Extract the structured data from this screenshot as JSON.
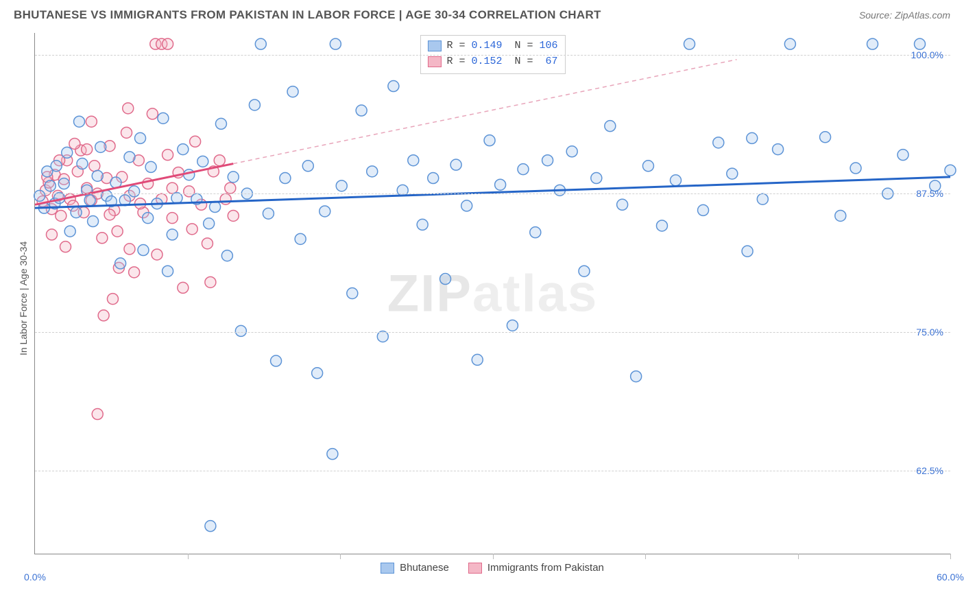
{
  "header": {
    "title": "BHUTANESE VS IMMIGRANTS FROM PAKISTAN IN LABOR FORCE | AGE 30-34 CORRELATION CHART",
    "source": "Source: ZipAtlas.com"
  },
  "watermark": {
    "strong": "ZIP",
    "light": "atlas"
  },
  "chart": {
    "type": "scatter",
    "ylabel": "In Labor Force | Age 30-34",
    "xlim": [
      0,
      60
    ],
    "ylim": [
      55,
      102
    ],
    "xticks": [
      0,
      10,
      20,
      30,
      40,
      50,
      60
    ],
    "xticks_labeled": [
      {
        "v": 0,
        "label": "0.0%"
      },
      {
        "v": 60,
        "label": "60.0%"
      }
    ],
    "yticks": [
      {
        "v": 62.5,
        "label": "62.5%"
      },
      {
        "v": 75.0,
        "label": "75.0%"
      },
      {
        "v": 87.5,
        "label": "87.5%"
      },
      {
        "v": 100.0,
        "label": "100.0%"
      }
    ],
    "grid_color": "#d0d0d0",
    "background": "#ffffff",
    "marker_radius": 8,
    "marker_fill_opacity": 0.35,
    "marker_stroke_width": 1.5,
    "series": [
      {
        "name": "Bhutanese",
        "color_fill": "#a9c8ee",
        "color_stroke": "#5c93d6",
        "trend": {
          "x1": 0,
          "y1": 86.2,
          "x2": 60,
          "y2": 89.0,
          "stroke": "#2565c7",
          "width": 3,
          "dash": ""
        },
        "R": 0.149,
        "N": 106,
        "points": [
          [
            0.3,
            87.3
          ],
          [
            0.6,
            86.2
          ],
          [
            0.8,
            89.5
          ],
          [
            1.0,
            88.2
          ],
          [
            1.3,
            86.6
          ],
          [
            1.4,
            90.0
          ],
          [
            1.6,
            87.1
          ],
          [
            1.9,
            88.4
          ],
          [
            2.1,
            91.2
          ],
          [
            2.3,
            84.1
          ],
          [
            2.7,
            85.8
          ],
          [
            2.9,
            94.0
          ],
          [
            3.1,
            90.2
          ],
          [
            3.4,
            87.8
          ],
          [
            3.6,
            86.9
          ],
          [
            3.8,
            85.0
          ],
          [
            4.1,
            89.1
          ],
          [
            4.3,
            91.7
          ],
          [
            4.7,
            87.3
          ],
          [
            5.0,
            86.8
          ],
          [
            5.3,
            88.5
          ],
          [
            5.6,
            81.2
          ],
          [
            5.9,
            86.9
          ],
          [
            6.2,
            90.8
          ],
          [
            6.5,
            87.7
          ],
          [
            6.9,
            92.5
          ],
          [
            7.1,
            82.4
          ],
          [
            7.4,
            85.3
          ],
          [
            7.6,
            89.9
          ],
          [
            8.0,
            86.6
          ],
          [
            8.4,
            94.3
          ],
          [
            8.7,
            80.5
          ],
          [
            9.0,
            83.8
          ],
          [
            9.3,
            87.1
          ],
          [
            9.7,
            91.5
          ],
          [
            10.1,
            89.2
          ],
          [
            10.6,
            87.0
          ],
          [
            11.0,
            90.4
          ],
          [
            11.4,
            84.8
          ],
          [
            11.8,
            86.3
          ],
          [
            12.2,
            93.8
          ],
          [
            12.6,
            81.9
          ],
          [
            13.0,
            89.0
          ],
          [
            13.5,
            75.1
          ],
          [
            13.9,
            87.5
          ],
          [
            14.4,
            95.5
          ],
          [
            14.8,
            101.0
          ],
          [
            15.3,
            85.7
          ],
          [
            15.8,
            72.4
          ],
          [
            16.4,
            88.9
          ],
          [
            16.9,
            96.7
          ],
          [
            17.4,
            83.4
          ],
          [
            17.9,
            90.0
          ],
          [
            18.5,
            71.3
          ],
          [
            19.0,
            85.9
          ],
          [
            19.5,
            64.0
          ],
          [
            19.7,
            101.0
          ],
          [
            20.1,
            88.2
          ],
          [
            20.8,
            78.5
          ],
          [
            21.4,
            95.0
          ],
          [
            22.1,
            89.5
          ],
          [
            22.8,
            74.6
          ],
          [
            23.5,
            97.2
          ],
          [
            24.1,
            87.8
          ],
          [
            24.8,
            90.5
          ],
          [
            25.4,
            84.7
          ],
          [
            26.1,
            88.9
          ],
          [
            26.9,
            79.8
          ],
          [
            27.6,
            90.1
          ],
          [
            28.3,
            86.4
          ],
          [
            29.0,
            72.5
          ],
          [
            29.8,
            92.3
          ],
          [
            30.5,
            88.3
          ],
          [
            31.3,
            75.6
          ],
          [
            32.0,
            89.7
          ],
          [
            32.8,
            84.0
          ],
          [
            33.6,
            90.5
          ],
          [
            34.4,
            87.8
          ],
          [
            35.2,
            91.3
          ],
          [
            36.0,
            80.5
          ],
          [
            36.8,
            88.9
          ],
          [
            37.7,
            93.6
          ],
          [
            38.5,
            86.5
          ],
          [
            39.4,
            71.0
          ],
          [
            40.2,
            90.0
          ],
          [
            41.1,
            84.6
          ],
          [
            42.0,
            88.7
          ],
          [
            42.9,
            101.0
          ],
          [
            43.8,
            86.0
          ],
          [
            44.8,
            92.1
          ],
          [
            45.7,
            89.3
          ],
          [
            46.7,
            82.3
          ],
          [
            47.0,
            92.5
          ],
          [
            47.7,
            87.0
          ],
          [
            48.7,
            91.5
          ],
          [
            49.5,
            101.0
          ],
          [
            51.8,
            92.6
          ],
          [
            52.8,
            85.5
          ],
          [
            53.8,
            89.8
          ],
          [
            54.9,
            101.0
          ],
          [
            55.9,
            87.5
          ],
          [
            56.9,
            91.0
          ],
          [
            58.0,
            101.0
          ],
          [
            59.0,
            88.2
          ],
          [
            60.0,
            89.6
          ],
          [
            11.5,
            57.5
          ]
        ]
      },
      {
        "name": "Immigrants from Pakistan",
        "color_fill": "#f4b7c6",
        "color_stroke": "#e06a8b",
        "trend": {
          "x1": 0,
          "y1": 86.5,
          "x2": 13,
          "y2": 90.2,
          "stroke": "#e04a78",
          "width": 3,
          "dash": ""
        },
        "trend_ext": {
          "x1": 13,
          "y1": 90.2,
          "x2": 46,
          "y2": 99.6,
          "stroke": "#e8a5ba",
          "width": 1.5,
          "dash": "6,5"
        },
        "R": 0.152,
        "N": 67,
        "points": [
          [
            0.5,
            86.8
          ],
          [
            0.7,
            87.8
          ],
          [
            0.9,
            88.5
          ],
          [
            1.1,
            86.1
          ],
          [
            1.3,
            89.2
          ],
          [
            1.5,
            87.3
          ],
          [
            1.7,
            85.5
          ],
          [
            1.9,
            88.8
          ],
          [
            2.1,
            90.5
          ],
          [
            2.3,
            87.0
          ],
          [
            2.5,
            86.4
          ],
          [
            2.8,
            89.5
          ],
          [
            3.0,
            91.4
          ],
          [
            3.2,
            85.8
          ],
          [
            3.4,
            88.0
          ],
          [
            3.7,
            86.9
          ],
          [
            3.9,
            90.0
          ],
          [
            4.1,
            87.5
          ],
          [
            4.4,
            83.5
          ],
          [
            4.7,
            88.9
          ],
          [
            4.9,
            91.8
          ],
          [
            5.2,
            86.0
          ],
          [
            5.4,
            84.1
          ],
          [
            5.7,
            89.0
          ],
          [
            6.0,
            93.0
          ],
          [
            6.2,
            87.3
          ],
          [
            6.5,
            80.4
          ],
          [
            6.8,
            90.5
          ],
          [
            7.1,
            85.8
          ],
          [
            7.4,
            88.4
          ],
          [
            7.7,
            94.7
          ],
          [
            8.0,
            82.0
          ],
          [
            8.3,
            87.0
          ],
          [
            8.7,
            91.0
          ],
          [
            9.0,
            85.3
          ],
          [
            9.4,
            89.4
          ],
          [
            9.7,
            79.0
          ],
          [
            10.1,
            87.7
          ],
          [
            10.5,
            92.2
          ],
          [
            10.9,
            86.5
          ],
          [
            11.3,
            83.0
          ],
          [
            11.7,
            89.5
          ],
          [
            12.1,
            90.5
          ],
          [
            12.5,
            87.0
          ],
          [
            13.0,
            85.5
          ],
          [
            4.1,
            67.6
          ],
          [
            5.1,
            78.0
          ],
          [
            6.2,
            82.5
          ],
          [
            3.7,
            94.0
          ],
          [
            2.6,
            92.0
          ],
          [
            4.5,
            76.5
          ],
          [
            7.9,
            101.0
          ],
          [
            8.3,
            101.0
          ],
          [
            8.7,
            101.0
          ],
          [
            6.1,
            95.2
          ],
          [
            5.5,
            80.8
          ],
          [
            1.1,
            83.8
          ],
          [
            2.0,
            82.7
          ],
          [
            3.4,
            91.5
          ],
          [
            4.9,
            85.6
          ],
          [
            6.9,
            86.6
          ],
          [
            9.0,
            88.0
          ],
          [
            10.3,
            84.3
          ],
          [
            11.5,
            79.5
          ],
          [
            12.8,
            88.0
          ],
          [
            0.8,
            89.0
          ],
          [
            1.6,
            90.5
          ]
        ]
      }
    ]
  },
  "legend_bottom": [
    {
      "label": "Bhutanese",
      "fill": "#a9c8ee",
      "stroke": "#5c93d6"
    },
    {
      "label": "Immigrants from Pakistan",
      "fill": "#f4b7c6",
      "stroke": "#e06a8b"
    }
  ]
}
